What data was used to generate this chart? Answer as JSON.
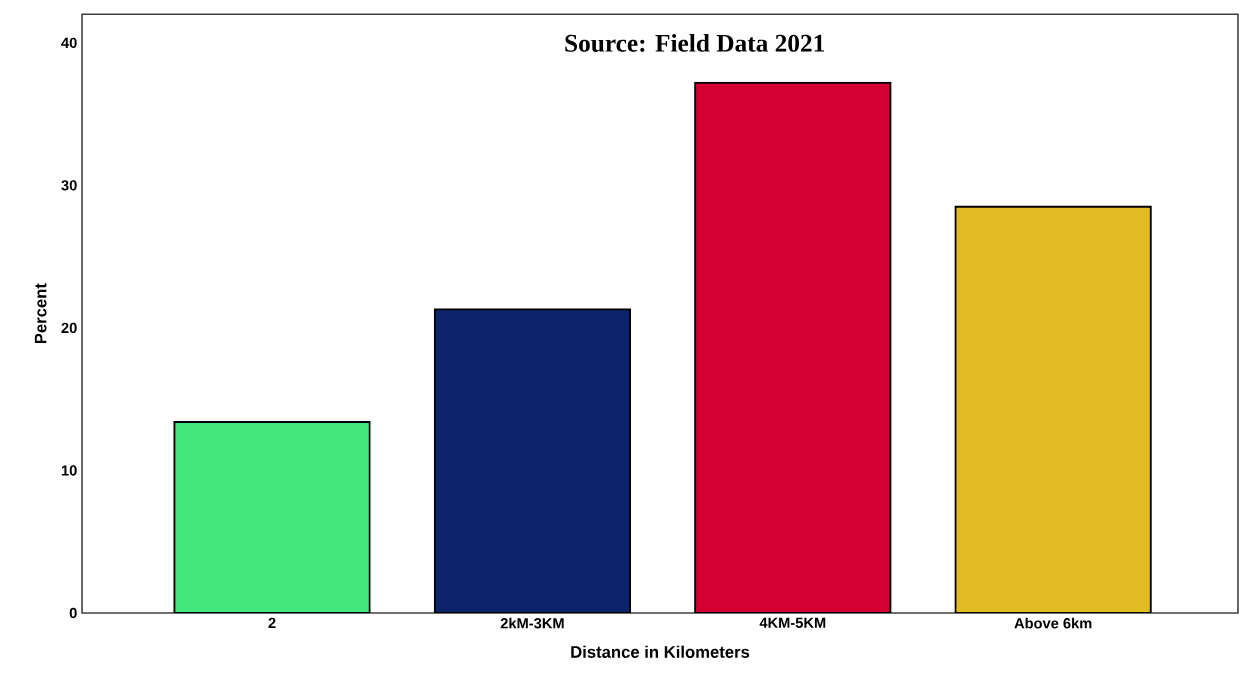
{
  "chart_data": {
    "type": "bar",
    "categories": [
      "2",
      "2kM-3KM",
      "4KM-5KM",
      "Above 6km"
    ],
    "values": [
      13.4,
      21.3,
      37.2,
      28.5
    ],
    "colors": [
      "#42e87c",
      "#0b246b",
      "#d50032",
      "#e0bc22"
    ],
    "ylim": [
      0,
      42
    ],
    "yticks": [
      0,
      10,
      20,
      30,
      40
    ],
    "xlabel": "Distance in Kilometers",
    "ylabel": "Percent",
    "annotations": [
      "Source: Field Data 2021"
    ]
  }
}
